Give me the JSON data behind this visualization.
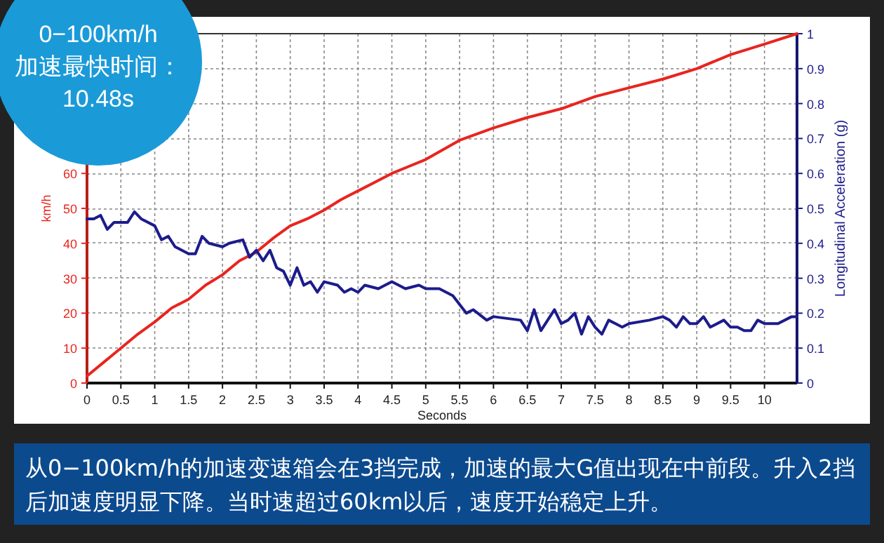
{
  "chart_data": {
    "type": "line",
    "xlabel": "Seconds",
    "ylabel": "km/h",
    "y2label": "Longitudinal Acceleration (g)",
    "annotations": [
      "0−100km/h",
      "加速最快时间：",
      "10.48s",
      "从0−100km/h的加速变速箱会在3挡完成，加速的最大G值出现在中前段。升入2挡后加速度明显下降。当时速超过60km以后，速度开始稳定上升。"
    ],
    "xlim": [
      0,
      10.48
    ],
    "xticks": [
      0,
      0.5,
      1,
      1.5,
      2,
      2.5,
      3,
      3.5,
      4,
      4.5,
      5,
      5.5,
      6,
      6.5,
      7,
      7.5,
      8,
      8.5,
      9,
      9.5,
      10
    ],
    "ylim": [
      0,
      100
    ],
    "yticks": [
      0,
      10,
      20,
      30,
      40,
      50,
      60
    ],
    "y2lim": [
      0,
      1
    ],
    "y2ticks": [
      0,
      0.1,
      0.2,
      0.3,
      0.4,
      0.5,
      0.6,
      0.7,
      0.8,
      0.9,
      1
    ],
    "grid": true,
    "series": [
      {
        "color": "#e8251f",
        "axis": "y",
        "x": [
          0,
          0.25,
          0.5,
          0.75,
          1,
          1.25,
          1.5,
          1.75,
          2,
          2.25,
          2.5,
          2.75,
          3,
          3.25,
          3.5,
          3.75,
          4,
          4.25,
          4.5,
          4.75,
          5,
          5.5,
          6,
          6.5,
          7,
          7.5,
          8,
          8.5,
          9,
          9.5,
          10,
          10.48
        ],
        "values": [
          2,
          6,
          10,
          14,
          17.5,
          21.5,
          24,
          28,
          31,
          35,
          37.5,
          41.5,
          45,
          47,
          49.5,
          52.5,
          55,
          57.5,
          60,
          62,
          64,
          69.5,
          73,
          76,
          78.5,
          82,
          84.5,
          87,
          90,
          94,
          97,
          100
        ]
      },
      {
        "color": "#1c1c8c",
        "axis": "y2",
        "x": [
          0,
          0.1,
          0.2,
          0.3,
          0.4,
          0.6,
          0.7,
          0.8,
          1,
          1.1,
          1.2,
          1.3,
          1.5,
          1.6,
          1.7,
          1.8,
          2,
          2.1,
          2.3,
          2.4,
          2.5,
          2.6,
          2.7,
          2.8,
          2.9,
          3,
          3.1,
          3.2,
          3.3,
          3.4,
          3.5,
          3.7,
          3.8,
          3.9,
          4,
          4.1,
          4.3,
          4.5,
          4.7,
          4.9,
          5,
          5.2,
          5.4,
          5.6,
          5.7,
          5.9,
          6,
          6.4,
          6.5,
          6.6,
          6.7,
          6.8,
          6.9,
          7,
          7.1,
          7.2,
          7.3,
          7.4,
          7.5,
          7.6,
          7.7,
          7.8,
          7.9,
          8,
          8.3,
          8.5,
          8.6,
          8.7,
          8.8,
          8.9,
          9,
          9.1,
          9.2,
          9.4,
          9.5,
          9.6,
          9.7,
          9.8,
          9.9,
          10,
          10.1,
          10.2,
          10.4,
          10.48
        ],
        "values": [
          0.47,
          0.47,
          0.48,
          0.44,
          0.46,
          0.46,
          0.49,
          0.47,
          0.45,
          0.41,
          0.42,
          0.39,
          0.37,
          0.37,
          0.42,
          0.4,
          0.39,
          0.4,
          0.41,
          0.36,
          0.38,
          0.35,
          0.38,
          0.33,
          0.32,
          0.28,
          0.33,
          0.28,
          0.29,
          0.26,
          0.29,
          0.28,
          0.26,
          0.27,
          0.26,
          0.28,
          0.27,
          0.29,
          0.27,
          0.28,
          0.27,
          0.27,
          0.25,
          0.2,
          0.21,
          0.18,
          0.19,
          0.18,
          0.15,
          0.21,
          0.15,
          0.18,
          0.21,
          0.17,
          0.18,
          0.2,
          0.14,
          0.19,
          0.16,
          0.14,
          0.18,
          0.17,
          0.16,
          0.17,
          0.18,
          0.19,
          0.18,
          0.16,
          0.19,
          0.17,
          0.17,
          0.19,
          0.16,
          0.18,
          0.16,
          0.16,
          0.15,
          0.15,
          0.18,
          0.17,
          0.17,
          0.17,
          0.19,
          0.19
        ]
      }
    ]
  }
}
